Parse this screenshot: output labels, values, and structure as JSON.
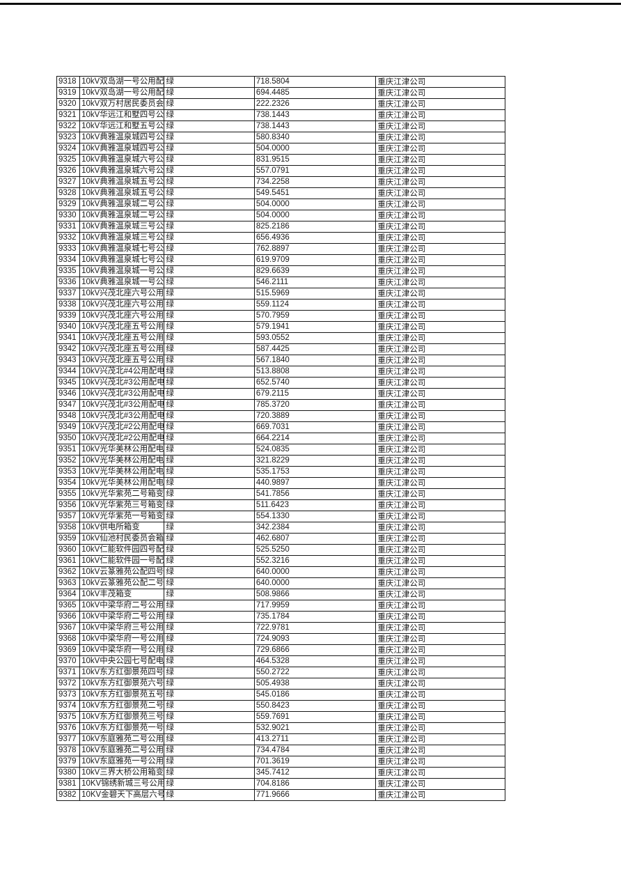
{
  "document": {
    "kind": "power-distribution-table-page",
    "company_name": "重庆江津公司",
    "status_label": "绿",
    "table": {
      "column_keys": [
        "id",
        "name",
        "status",
        "value",
        "company"
      ],
      "rows": [
        {
          "id": "9318",
          "name": "10kV双岛湖一号公用配电",
          "status": "绿",
          "value": "718.5804",
          "company": "重庆江津公司"
        },
        {
          "id": "9319",
          "name": "10kV双岛湖一号公用配电",
          "status": "绿",
          "value": "694.4485",
          "company": "重庆江津公司"
        },
        {
          "id": "9320",
          "name": "10kV双万村居民委员会箱",
          "status": "绿",
          "value": "222.2326",
          "company": "重庆江津公司"
        },
        {
          "id": "9321",
          "name": "10kV华远江和墅四号公用",
          "status": "绿",
          "value": "738.1443",
          "company": "重庆江津公司"
        },
        {
          "id": "9322",
          "name": "10kV华远江和墅五号公用",
          "status": "绿",
          "value": "738.1443",
          "company": "重庆江津公司"
        },
        {
          "id": "9323",
          "name": "10kV典雅温泉城四号公用",
          "status": "绿",
          "value": "580.8340",
          "company": "重庆江津公司"
        },
        {
          "id": "9324",
          "name": "10kV典雅温泉城四号公用",
          "status": "绿",
          "value": "504.0000",
          "company": "重庆江津公司"
        },
        {
          "id": "9325",
          "name": "10kV典雅温泉城六号公配",
          "status": "绿",
          "value": "831.9515",
          "company": "重庆江津公司"
        },
        {
          "id": "9326",
          "name": "10kV典雅温泉城六号公用",
          "status": "绿",
          "value": "557.0791",
          "company": "重庆江津公司"
        },
        {
          "id": "9327",
          "name": "10kV典雅温泉城五号公配",
          "status": "绿",
          "value": "734.2258",
          "company": "重庆江津公司"
        },
        {
          "id": "9328",
          "name": "10kV典雅温泉城五号公配",
          "status": "绿",
          "value": "549.5451",
          "company": "重庆江津公司"
        },
        {
          "id": "9329",
          "name": "10kV典雅温泉城二号公用",
          "status": "绿",
          "value": "504.0000",
          "company": "重庆江津公司"
        },
        {
          "id": "9330",
          "name": "10kV典雅温泉城二号公用",
          "status": "绿",
          "value": "504.0000",
          "company": "重庆江津公司"
        },
        {
          "id": "9331",
          "name": "10kV典雅温泉城三号公配",
          "status": "绿",
          "value": "825.2186",
          "company": "重庆江津公司"
        },
        {
          "id": "9332",
          "name": "10kV典雅温泉城三号公配",
          "status": "绿",
          "value": "656.4936",
          "company": "重庆江津公司"
        },
        {
          "id": "9333",
          "name": "10kV典雅温泉城七号公配",
          "status": "绿",
          "value": "762.8897",
          "company": "重庆江津公司"
        },
        {
          "id": "9334",
          "name": "10kV典雅温泉城七号公配",
          "status": "绿",
          "value": "619.9709",
          "company": "重庆江津公司"
        },
        {
          "id": "9335",
          "name": "10kV典雅温泉城一号公配",
          "status": "绿",
          "value": "829.6639",
          "company": "重庆江津公司"
        },
        {
          "id": "9336",
          "name": "10kV典雅温泉城一号公配",
          "status": "绿",
          "value": "546.2111",
          "company": "重庆江津公司"
        },
        {
          "id": "9337",
          "name": "10kV兴茂北座六号公用配",
          "status": "绿",
          "value": "515.5969",
          "company": "重庆江津公司"
        },
        {
          "id": "9338",
          "name": "10kV兴茂北座六号公用配",
          "status": "绿",
          "value": "559.1124",
          "company": "重庆江津公司"
        },
        {
          "id": "9339",
          "name": "10kV兴茂北座六号公用配",
          "status": "绿",
          "value": "570.7959",
          "company": "重庆江津公司"
        },
        {
          "id": "9340",
          "name": "10kV兴茂北座五号公用配",
          "status": "绿",
          "value": "579.1941",
          "company": "重庆江津公司"
        },
        {
          "id": "9341",
          "name": "10kV兴茂北座五号公用配",
          "status": "绿",
          "value": "593.0552",
          "company": "重庆江津公司"
        },
        {
          "id": "9342",
          "name": "10kV兴茂北座五号公用配",
          "status": "绿",
          "value": "587.4425",
          "company": "重庆江津公司"
        },
        {
          "id": "9343",
          "name": "10kV兴茂北座五号公用配",
          "status": "绿",
          "value": "567.1840",
          "company": "重庆江津公司"
        },
        {
          "id": "9344",
          "name": "10kV兴茂北#4公用配电房",
          "status": "绿",
          "value": "513.8808",
          "company": "重庆江津公司"
        },
        {
          "id": "9345",
          "name": "10kV兴茂北#3公用配电房",
          "status": "绿",
          "value": "652.5740",
          "company": "重庆江津公司"
        },
        {
          "id": "9346",
          "name": "10kV兴茂北#3公用配电房",
          "status": "绿",
          "value": "679.2115",
          "company": "重庆江津公司"
        },
        {
          "id": "9347",
          "name": "10kV兴茂北#3公用配电房",
          "status": "绿",
          "value": "785.3720",
          "company": "重庆江津公司"
        },
        {
          "id": "9348",
          "name": "10kV兴茂北#3公用配电房",
          "status": "绿",
          "value": "720.3889",
          "company": "重庆江津公司"
        },
        {
          "id": "9349",
          "name": "10kV兴茂北#2公用配电房",
          "status": "绿",
          "value": "669.7031",
          "company": "重庆江津公司"
        },
        {
          "id": "9350",
          "name": "10kV兴茂北#2公用配电房",
          "status": "绿",
          "value": "664.2214",
          "company": "重庆江津公司"
        },
        {
          "id": "9351",
          "name": "10kV光华美林公用配电房",
          "status": "绿",
          "value": "524.0835",
          "company": "重庆江津公司"
        },
        {
          "id": "9352",
          "name": "10kV光华美林公用配电房",
          "status": "绿",
          "value": "321.8229",
          "company": "重庆江津公司"
        },
        {
          "id": "9353",
          "name": "10kV光华美林公用配电房",
          "status": "绿",
          "value": "535.1753",
          "company": "重庆江津公司"
        },
        {
          "id": "9354",
          "name": "10kV光华美林公用配电房",
          "status": "绿",
          "value": "440.9897",
          "company": "重庆江津公司"
        },
        {
          "id": "9355",
          "name": "10kV光华紫苑二号箱变",
          "status": "绿",
          "value": "541.7856",
          "company": "重庆江津公司"
        },
        {
          "id": "9356",
          "name": "10kV光华紫苑三号箱变",
          "status": "绿",
          "value": "511.6423",
          "company": "重庆江津公司"
        },
        {
          "id": "9357",
          "name": "10kV光华紫苑一号箱变",
          "status": "绿",
          "value": "554.1330",
          "company": "重庆江津公司"
        },
        {
          "id": "9358",
          "name": "10kV供电所箱变",
          "status": "绿",
          "value": "342.2384",
          "company": "重庆江津公司"
        },
        {
          "id": "9359",
          "name": "10kV仙池村民委员会箱变",
          "status": "绿",
          "value": "462.6807",
          "company": "重庆江津公司"
        },
        {
          "id": "9360",
          "name": "10kV仁能软件园四号配一",
          "status": "绿",
          "value": "525.5250",
          "company": "重庆江津公司"
        },
        {
          "id": "9361",
          "name": "10kV仁能软件园一号配一",
          "status": "绿",
          "value": "552.3216",
          "company": "重庆江津公司"
        },
        {
          "id": "9362",
          "name": "10kV云篆雅苑公配四号变",
          "status": "绿",
          "value": "640.0000",
          "company": "重庆江津公司"
        },
        {
          "id": "9363",
          "name": "10kV云篆雅苑公配二号变",
          "status": "绿",
          "value": "640.0000",
          "company": "重庆江津公司"
        },
        {
          "id": "9364",
          "name": "10kV丰茂箱变",
          "status": "绿",
          "value": "508.9866",
          "company": "重庆江津公司"
        },
        {
          "id": "9365",
          "name": "10kV中梁华府二号公用配",
          "status": "绿",
          "value": "717.9959",
          "company": "重庆江津公司"
        },
        {
          "id": "9366",
          "name": "10kV中梁华府二号公用配",
          "status": "绿",
          "value": "735.1784",
          "company": "重庆江津公司"
        },
        {
          "id": "9367",
          "name": "10kV中梁华府三号公用配",
          "status": "绿",
          "value": "722.9781",
          "company": "重庆江津公司"
        },
        {
          "id": "9368",
          "name": "10kV中梁华府一号公用配",
          "status": "绿",
          "value": "724.9093",
          "company": "重庆江津公司"
        },
        {
          "id": "9369",
          "name": "10kV中梁华府一号公用配",
          "status": "绿",
          "value": "729.6866",
          "company": "重庆江津公司"
        },
        {
          "id": "9370",
          "name": "10kV中央公园七号配电房",
          "status": "绿",
          "value": "464.5328",
          "company": "重庆江津公司"
        },
        {
          "id": "9371",
          "name": "10kV东方红御景苑四号配",
          "status": "绿",
          "value": "550.2722",
          "company": "重庆江津公司"
        },
        {
          "id": "9372",
          "name": "10kV东方红御景苑六号配",
          "status": "绿",
          "value": "505.4938",
          "company": "重庆江津公司"
        },
        {
          "id": "9373",
          "name": "10kV东方红御景苑五号配",
          "status": "绿",
          "value": "545.0186",
          "company": "重庆江津公司"
        },
        {
          "id": "9374",
          "name": "10kV东方红御景苑二号配",
          "status": "绿",
          "value": "550.8423",
          "company": "重庆江津公司"
        },
        {
          "id": "9375",
          "name": "10kV东方红御景苑三号配",
          "status": "绿",
          "value": "559.7691",
          "company": "重庆江津公司"
        },
        {
          "id": "9376",
          "name": "10kV东方红御景苑一号配",
          "status": "绿",
          "value": "532.9021",
          "company": "重庆江津公司"
        },
        {
          "id": "9377",
          "name": "10kV东庭雅苑二号公用配",
          "status": "绿",
          "value": "413.2711",
          "company": "重庆江津公司"
        },
        {
          "id": "9378",
          "name": "10kV东庭雅苑二号公用配",
          "status": "绿",
          "value": "734.4784",
          "company": "重庆江津公司"
        },
        {
          "id": "9379",
          "name": "10kV东庭雅苑一号公用配",
          "status": "绿",
          "value": "701.3619",
          "company": "重庆江津公司"
        },
        {
          "id": "9380",
          "name": "10kV三界大桥公用箱变",
          "status": "绿",
          "value": "345.7412",
          "company": "重庆江津公司"
        },
        {
          "id": "9381",
          "name": "10KV锦绣新城三号公用配",
          "status": "绿",
          "value": "704.8186",
          "company": "重庆江津公司"
        },
        {
          "id": "9382",
          "name": "10KV金碧天下高层六号公",
          "status": "绿",
          "value": "771.9666",
          "company": "重庆江津公司"
        }
      ]
    }
  },
  "colors": {
    "page_background": "#ffffff",
    "top_rule": "#0d0d0d",
    "grid_border": "#161616",
    "cell_text": "#1b1b1b",
    "company_text": "#4a4a4a"
  }
}
